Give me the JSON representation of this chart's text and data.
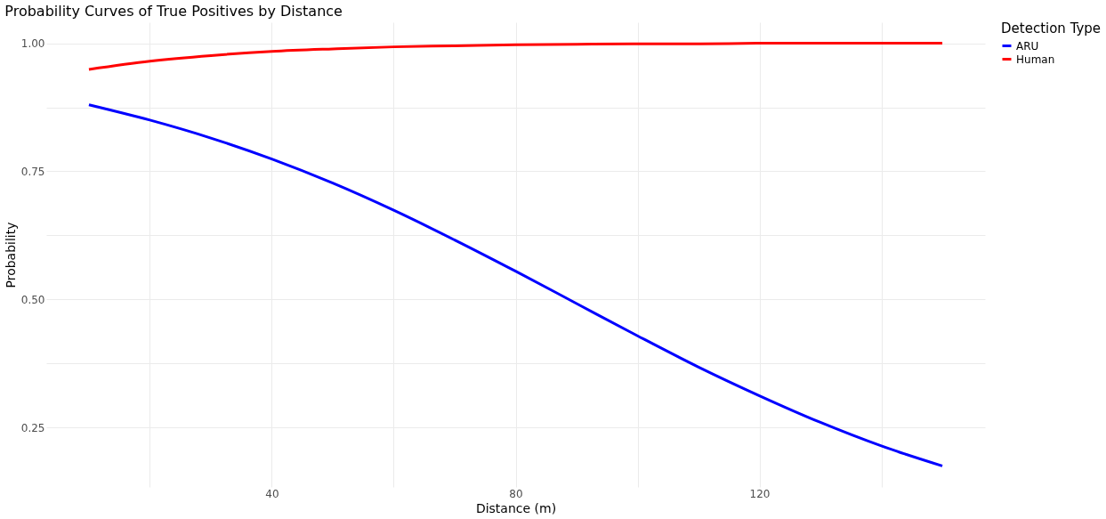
{
  "chart_data": {
    "type": "line",
    "title": "Probability Curves of True Positives by Distance",
    "xlabel": "Distance (m)",
    "ylabel": "Probability",
    "legend_title": "Detection Type",
    "legend": "right",
    "grid": true,
    "line_style": "solid",
    "xlim": [
      3,
      157
    ],
    "ylim": [
      0.134,
      1.041
    ],
    "xticks": [
      {
        "value": 20,
        "label": null
      },
      40,
      {
        "value": 60,
        "label": null
      },
      80,
      {
        "value": 100,
        "label": null
      },
      120,
      {
        "value": 140,
        "label": null
      }
    ],
    "yticks": [
      {
        "value": 0.25,
        "label": "0.25"
      },
      {
        "value": 0.375,
        "label": null
      },
      {
        "value": 0.5,
        "label": "0.50"
      },
      {
        "value": 0.625,
        "label": null
      },
      {
        "value": 0.75,
        "label": "0.75"
      },
      {
        "value": 0.875,
        "label": null
      },
      {
        "value": 1.0,
        "label": "1.00"
      }
    ],
    "x": [
      10,
      20,
      30,
      40,
      50,
      60,
      70,
      80,
      90,
      100,
      110,
      120,
      130,
      140,
      150
    ],
    "series": [
      {
        "name": "ARU",
        "color": "#0000ff",
        "values": [
          0.88,
          0.85,
          0.815,
          0.774,
          0.727,
          0.674,
          0.616,
          0.555,
          0.492,
          0.429,
          0.368,
          0.312,
          0.26,
          0.214,
          0.175
        ]
      },
      {
        "name": "Human",
        "color": "#ff0000",
        "values": [
          0.949,
          0.965,
          0.976,
          0.984,
          0.989,
          0.993,
          0.995,
          0.997,
          0.998,
          0.999,
          0.999,
          1.0,
          1.0,
          1.0,
          1.0
        ]
      }
    ]
  }
}
